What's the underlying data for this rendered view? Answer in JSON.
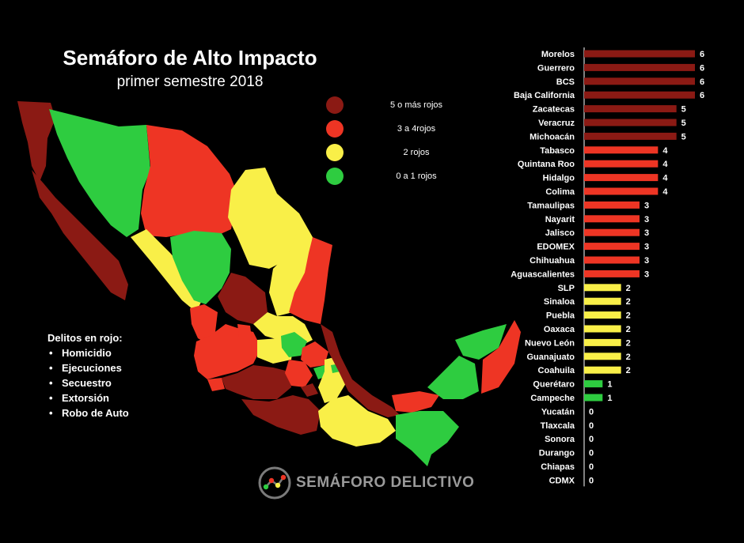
{
  "title": "Semáforo de Alto Impacto",
  "subtitle": "primer semestre 2018",
  "legend": [
    {
      "label": "5 o más rojos",
      "color": "#8b1a14"
    },
    {
      "label": "3 a 4rojos",
      "color": "#ee3524"
    },
    {
      "label": "2 rojos",
      "color": "#f9ef48"
    },
    {
      "label": "0 a 1 rojos",
      "color": "#2ecc40"
    }
  ],
  "crimes": {
    "title": "Delitos en rojo:",
    "items": [
      "Homicidio",
      "Ejecuciones",
      "Secuestro",
      "Extorsión",
      "Robo de Auto"
    ]
  },
  "brand": {
    "name": "SEMÁFORO DELICTIVO"
  },
  "colors": {
    "dark_red": "#8b1a14",
    "red": "#ee3524",
    "yellow": "#f9ef48",
    "green": "#2ecc40",
    "background": "#000000"
  },
  "chart_data": {
    "type": "bar",
    "orientation": "horizontal",
    "categories": [
      "Morelos",
      "Guerrero",
      "BCS",
      "Baja California",
      "Zacatecas",
      "Veracruz",
      "Michoacán",
      "Tabasco",
      "Quintana Roo",
      "Hidalgo",
      "Colima",
      "Tamaulipas",
      "Nayarit",
      "Jalisco",
      "EDOMEX",
      "Chihuahua",
      "Aguascalientes",
      "SLP",
      "Sinaloa",
      "Puebla",
      "Oaxaca",
      "Nuevo León",
      "Guanajuato",
      "Coahuila",
      "Querétaro",
      "Campeche",
      "Yucatán",
      "Tlaxcala",
      "Sonora",
      "Durango",
      "Chiapas",
      "CDMX"
    ],
    "values": [
      6,
      6,
      6,
      6,
      5,
      5,
      5,
      4,
      4,
      4,
      4,
      3,
      3,
      3,
      3,
      3,
      3,
      2,
      2,
      2,
      2,
      2,
      2,
      2,
      1,
      1,
      0,
      0,
      0,
      0,
      0,
      0
    ],
    "xlim": [
      0,
      6
    ]
  }
}
